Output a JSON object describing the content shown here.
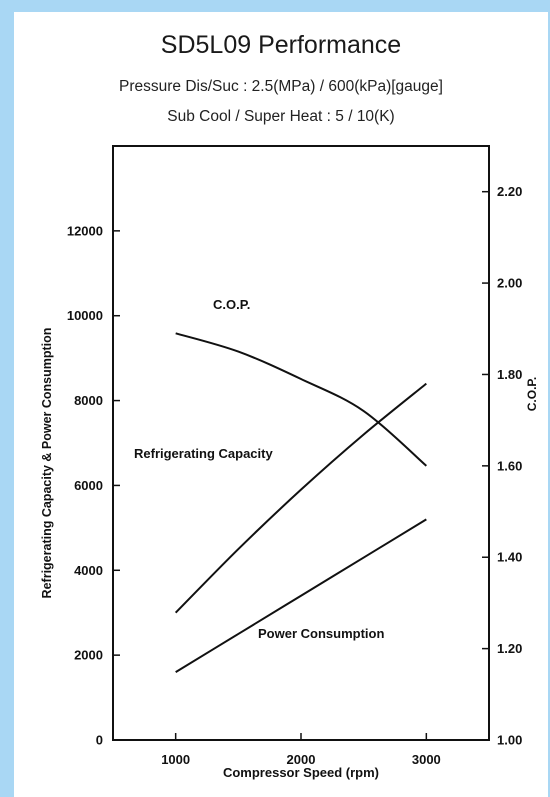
{
  "chart_data": {
    "type": "line",
    "title": "SD5L09 Performance",
    "subtitle_lines": [
      "Pressure Dis/Suc : 2.5(MPa) / 600(kPa)[gauge]",
      "Sub Cool / Super Heat : 5 / 10(K)"
    ],
    "xlabel": "Compressor Speed (rpm)",
    "ylabel_left": "Refrigerating Capacity & Power Consumption",
    "ylabel_right": "C.O.P.",
    "xlim": [
      500,
      3500
    ],
    "ylim_left": [
      0,
      14000
    ],
    "ylim_right": [
      1.0,
      2.3
    ],
    "x_ticks": [
      1000,
      2000,
      3000
    ],
    "y_ticks_left": [
      0,
      2000,
      4000,
      6000,
      8000,
      10000,
      12000
    ],
    "y_ticks_right": [
      "1.00",
      "1.20",
      "1.40",
      "1.60",
      "1.80",
      "2.00",
      "2.20"
    ],
    "grid": false,
    "series": [
      {
        "name": "Refrigerating Capacity",
        "axis": "left",
        "x": [
          1000,
          1500,
          2000,
          2500,
          3000
        ],
        "y": [
          3000,
          4500,
          5900,
          7200,
          8400
        ]
      },
      {
        "name": "Power Consumption",
        "axis": "left",
        "x": [
          1000,
          1500,
          2000,
          2500,
          3000
        ],
        "y": [
          1600,
          2500,
          3400,
          4300,
          5200
        ]
      },
      {
        "name": "C.O.P.",
        "axis": "right",
        "x": [
          1000,
          1500,
          2000,
          2500,
          3000
        ],
        "y": [
          1.89,
          1.85,
          1.79,
          1.72,
          1.6
        ]
      }
    ]
  }
}
